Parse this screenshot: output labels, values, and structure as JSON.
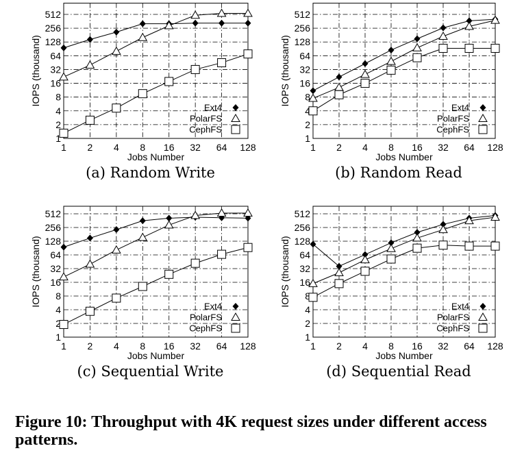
{
  "caption": "Figure 10: Throughput with 4K request sizes under different access patterns.",
  "chart_data": [
    {
      "type": "line",
      "title": "(a) Random Write",
      "xlabel": "Jobs Number",
      "ylabel": "IOPS (thousand)",
      "xscale": "log2",
      "yscale": "log2",
      "x": [
        1,
        2,
        4,
        8,
        16,
        32,
        64,
        128
      ],
      "yticks": [
        1,
        2,
        4,
        8,
        16,
        32,
        64,
        128,
        256,
        512
      ],
      "ylim": [
        1,
        900
      ],
      "grid": true,
      "legend": "bottom-right",
      "series": [
        {
          "name": "Ext4",
          "marker": "filled-diamond",
          "values": [
            95,
            145,
            210,
            320,
            320,
            330,
            330,
            330
          ]
        },
        {
          "name": "PolarFS",
          "marker": "open-triangle",
          "values": [
            22,
            40,
            80,
            160,
            290,
            490,
            540,
            540
          ]
        },
        {
          "name": "CephFS",
          "marker": "open-square",
          "values": [
            1.3,
            2.5,
            4.6,
            9.5,
            17.5,
            32,
            45,
            70
          ]
        }
      ]
    },
    {
      "type": "line",
      "title": "(b) Random Read",
      "xlabel": "Jobs Number",
      "ylabel": "IOPS (thousand)",
      "xscale": "log2",
      "yscale": "log2",
      "x": [
        1,
        2,
        4,
        8,
        16,
        32,
        64,
        128
      ],
      "yticks": [
        1,
        2,
        4,
        8,
        16,
        32,
        64,
        128,
        256,
        512
      ],
      "ylim": [
        1,
        900
      ],
      "grid": true,
      "legend": "bottom-right",
      "series": [
        {
          "name": "Ext4",
          "marker": "filled-diamond",
          "values": [
            11,
            22,
            43,
            85,
            150,
            260,
            370,
            400
          ]
        },
        {
          "name": "PolarFS",
          "marker": "open-triangle",
          "values": [
            7.5,
            13,
            25,
            48,
            95,
            170,
            280,
            380
          ]
        },
        {
          "name": "CephFS",
          "marker": "open-square",
          "values": [
            4,
            9,
            16,
            31,
            58,
            93,
            93,
            93
          ]
        }
      ]
    },
    {
      "type": "line",
      "title": "(c) Sequential Write",
      "xlabel": "Jobs Number",
      "ylabel": "IOPS (thousand)",
      "xscale": "log2",
      "yscale": "log2",
      "x": [
        1,
        2,
        4,
        8,
        16,
        32,
        64,
        128
      ],
      "yticks": [
        1,
        2,
        4,
        8,
        16,
        32,
        64,
        128,
        256,
        512
      ],
      "ylim": [
        1,
        750
      ],
      "grid": true,
      "legend": "bottom-right",
      "series": [
        {
          "name": "Ext4",
          "marker": "filled-diamond",
          "values": [
            95,
            150,
            230,
            360,
            410,
            430,
            420,
            410
          ]
        },
        {
          "name": "PolarFS",
          "marker": "open-triangle",
          "values": [
            21,
            40,
            82,
            155,
            290,
            470,
            530,
            530
          ]
        },
        {
          "name": "CephFS",
          "marker": "open-square",
          "values": [
            1.9,
            3.7,
            7.2,
            13,
            24,
            42,
            66,
            93
          ]
        }
      ]
    },
    {
      "type": "line",
      "title": "(d) Sequential Read",
      "xlabel": "Jobs Number",
      "ylabel": "IOPS (thousand)",
      "xscale": "log2",
      "yscale": "log2",
      "x": [
        1,
        2,
        4,
        8,
        16,
        32,
        64,
        128
      ],
      "yticks": [
        1,
        2,
        4,
        8,
        16,
        32,
        64,
        128,
        256,
        512
      ],
      "ylim": [
        1,
        750
      ],
      "grid": true,
      "legend": "bottom-right",
      "series": [
        {
          "name": "Ext4",
          "marker": "filled-diamond",
          "values": [
            110,
            36,
            65,
            118,
            200,
            300,
            410,
            470
          ]
        },
        {
          "name": "PolarFS",
          "marker": "open-triangle",
          "values": [
            15,
            26,
            50,
            88,
            150,
            230,
            360,
            430
          ]
        },
        {
          "name": "CephFS",
          "marker": "open-square",
          "values": [
            7.5,
            15,
            28,
            52,
            90,
            105,
            100,
            100
          ]
        }
      ]
    }
  ]
}
